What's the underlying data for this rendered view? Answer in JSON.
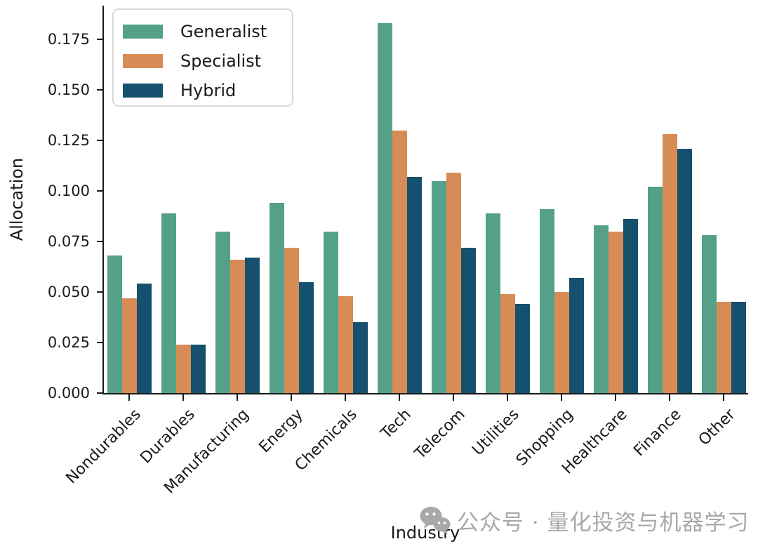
{
  "figure": {
    "background": "#ffffff",
    "text_color": "#1a1a1a"
  },
  "watermark": {
    "icon": "wechat-icon",
    "text": "公众号 · 量化投资与机器学习",
    "color": "#a8a8a8"
  },
  "chart_data": {
    "type": "bar",
    "title": "",
    "xlabel": "Industry",
    "ylabel": "Allocation",
    "ylim": [
      0,
      0.192
    ],
    "yticks": [
      "0.000",
      "0.025",
      "0.050",
      "0.075",
      "0.100",
      "0.125",
      "0.150",
      "0.175"
    ],
    "grid": false,
    "legend_position": "upper-left",
    "categories": [
      "Nondurables",
      "Durables",
      "Manufacturing",
      "Energy",
      "Chemicals",
      "Tech",
      "Telecom",
      "Utilities",
      "Shopping",
      "Healthcare",
      "Finance",
      "Other"
    ],
    "series": [
      {
        "name": "Generalist",
        "color": "#55a089",
        "values": [
          0.068,
          0.089,
          0.08,
          0.094,
          0.08,
          0.183,
          0.105,
          0.089,
          0.091,
          0.083,
          0.102,
          0.078
        ]
      },
      {
        "name": "Specialist",
        "color": "#d88c55",
        "values": [
          0.047,
          0.024,
          0.066,
          0.072,
          0.048,
          0.13,
          0.109,
          0.049,
          0.05,
          0.08,
          0.128,
          0.045
        ]
      },
      {
        "name": "Hybrid",
        "color": "#15506e",
        "values": [
          0.054,
          0.024,
          0.067,
          0.055,
          0.035,
          0.107,
          0.072,
          0.044,
          0.057,
          0.086,
          0.121,
          0.045
        ]
      }
    ]
  }
}
